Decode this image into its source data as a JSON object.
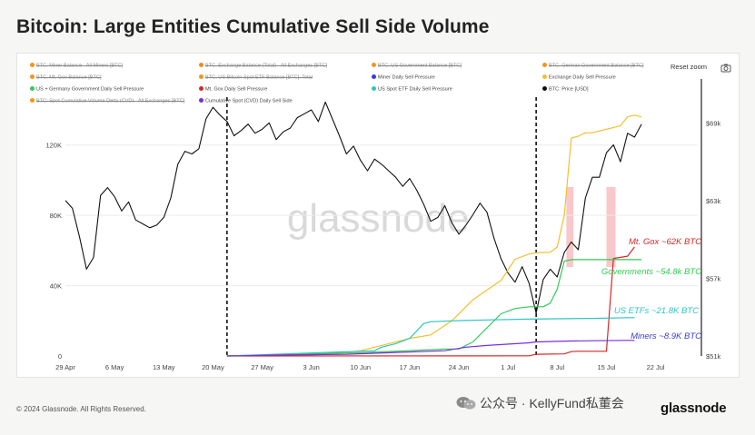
{
  "header": {
    "title": "Bitcoin: Large Entities Cumulative Sell Side Volume"
  },
  "toolbar": {
    "reset_label": "Reset zoom",
    "camera_icon": "camera-icon"
  },
  "legend": [
    {
      "label": "BTC: Miner Balance - All Miners [BTC]",
      "color": "#f7931a",
      "hidden": true
    },
    {
      "label": "BTC: Exchange Balance (Total) - All Exchanges [BTC]",
      "color": "#f08a24",
      "hidden": true
    },
    {
      "label": "BTC: US Government Balance [BTC]",
      "color": "#f7931a",
      "hidden": true
    },
    {
      "label": "BTC: German Government Balance [BTC]",
      "color": "#f7931a",
      "hidden": true
    },
    {
      "label": "BTC: Mt. Gox Balance [BTC]",
      "color": "#f7931a",
      "hidden": true
    },
    {
      "label": "BTC: US Bitcoin Spot ETF Balance [BTC]: Total",
      "color": "#f7931a",
      "hidden": true
    },
    {
      "label": "Miner Daily Sell Pressure",
      "color": "#3b3bdd",
      "hidden": false
    },
    {
      "label": "Exchange Daily Sell Pressure",
      "color": "#f2c02e",
      "hidden": false
    },
    {
      "label": "US + Germany Government Daily Sell Pressure",
      "color": "#2ecc52",
      "hidden": false
    },
    {
      "label": "Mt. Gox Daily Sell Pressure",
      "color": "#d62828",
      "hidden": false
    },
    {
      "label": "US Spot ETF Daily Sell Pressure",
      "color": "#2ec4c4",
      "hidden": false
    },
    {
      "label": "BTC: Price [USD]",
      "color": "#111111",
      "hidden": false
    },
    {
      "label": "BTC: Spot Cumulative Volume Delta (CVD) - All Exchanges [BTC]",
      "color": "#f7931a",
      "hidden": true
    },
    {
      "label": "Cumulative Spot (CVD) Daily Sell Side",
      "color": "#7a2ed6",
      "hidden": false
    }
  ],
  "annotations": [
    {
      "text": "Mt. Gox ~62K BTC",
      "color": "#d62828"
    },
    {
      "text": "Governments ~54.8k BTC",
      "color": "#2ecc52"
    },
    {
      "text": "US ETFs ~21.8K BTC",
      "color": "#2ec4c4"
    },
    {
      "text": "Miners ~8.9K BTC",
      "color": "#3b3bdd"
    }
  ],
  "watermark": "glassnode",
  "footer": {
    "copyright": "© 2024 Glassnode. All Rights Reserved.",
    "wechat": "公众号 · KellyFund私董会",
    "brand": "glassnode"
  },
  "chart_data": {
    "type": "line",
    "title": "Bitcoin: Large Entities Cumulative Sell Side Volume",
    "x_tick_labels": [
      "29 Apr",
      "6 May",
      "13 May",
      "20 May",
      "27 May",
      "3 Jun",
      "10 Jun",
      "17 Jun",
      "24 Jun",
      "1 Jul",
      "8 Jul",
      "15 Jul",
      "22 Jul"
    ],
    "x_range_days": [
      0,
      90
    ],
    "y_left": {
      "ticks": [
        0,
        40000,
        80000,
        120000
      ],
      "tick_labels": [
        "0",
        "40K",
        "80K",
        "120K"
      ],
      "range": [
        0,
        140000
      ]
    },
    "y_right": {
      "ticks": [
        51000,
        57000,
        63000,
        69000
      ],
      "tick_labels": [
        "$51k",
        "$57k",
        "$63k",
        "$69k"
      ],
      "range": [
        51000,
        70000
      ]
    },
    "vertical_markers_day": [
      23,
      67
    ],
    "shaded_regions_day": [
      [
        71.3,
        72.3
      ],
      [
        77,
        78.3
      ]
    ],
    "series": [
      {
        "name": "BTC: Price [USD]",
        "axis": "right",
        "color": "#111111",
        "x": [
          0,
          1,
          2,
          3,
          4,
          5,
          6,
          7,
          8,
          9,
          10,
          11,
          12,
          13,
          14,
          15,
          16,
          17,
          18,
          19,
          20,
          21,
          22,
          23,
          24,
          25,
          26,
          27,
          28,
          29,
          30,
          31,
          32,
          33,
          34,
          35,
          36,
          37,
          38,
          39,
          40,
          41,
          42,
          43,
          44,
          45,
          46,
          47,
          48,
          49,
          50,
          51,
          52,
          53,
          54,
          55,
          56,
          57,
          58,
          59,
          60,
          61,
          62,
          63,
          64,
          65,
          66,
          67,
          68,
          69,
          70,
          71,
          72,
          73,
          74,
          75,
          76,
          77,
          78,
          79,
          80,
          81,
          82
        ],
        "y": [
          63000,
          62400,
          60200,
          57700,
          58600,
          63400,
          64000,
          63300,
          62200,
          62900,
          61500,
          61200,
          60900,
          61100,
          61700,
          63200,
          65800,
          66800,
          66600,
          67000,
          69300,
          70200,
          69600,
          69100,
          68000,
          68400,
          68900,
          68200,
          68500,
          69000,
          67700,
          68300,
          68600,
          69400,
          69700,
          70000,
          69100,
          70600,
          69300,
          68000,
          66600,
          67200,
          66100,
          65300,
          66200,
          65800,
          65300,
          64800,
          64100,
          64700,
          63800,
          62700,
          61400,
          61700,
          62600,
          61300,
          60400,
          61100,
          61900,
          62800,
          62100,
          60100,
          58500,
          57400,
          56700,
          57900,
          56600,
          54300,
          56900,
          57700,
          57100,
          59000,
          59800,
          59200,
          63200,
          64800,
          64800,
          66700,
          67300,
          66000,
          68200,
          67900,
          68900
        ]
      },
      {
        "name": "Exchange Daily Sell Pressure",
        "axis": "left",
        "color": "#f2c02e",
        "x": [
          23,
          35,
          42,
          45,
          49,
          52,
          55,
          58,
          62,
          64,
          66,
          67,
          69,
          70,
          71,
          72,
          73,
          74,
          75,
          76,
          77,
          78,
          79,
          80,
          81,
          82
        ],
        "y": [
          0,
          500,
          3000,
          6000,
          10000,
          12000,
          20000,
          32000,
          43000,
          55000,
          58000,
          58700,
          59000,
          62000,
          80000,
          124000,
          125000,
          127000,
          127000,
          128000,
          129000,
          130000,
          131000,
          136000,
          137000,
          136000
        ]
      },
      {
        "name": "Mt. Gox Daily Sell Pressure",
        "axis": "left",
        "color": "#d62828",
        "x": [
          23,
          66,
          67,
          71,
          72,
          73,
          76,
          77,
          78,
          80,
          81
        ],
        "y": [
          0,
          100,
          1000,
          1200,
          2500,
          2700,
          2700,
          2700,
          55500,
          56800,
          62000
        ]
      },
      {
        "name": "US + Germany Government Daily Sell Pressure",
        "axis": "left",
        "color": "#2ecc52",
        "x": [
          23,
          43,
          54,
          56,
          57,
          58,
          60,
          62,
          64,
          66,
          67,
          68,
          69,
          70,
          71,
          72,
          73,
          74,
          75,
          76,
          77,
          78,
          79,
          80,
          81,
          82
        ],
        "y": [
          0,
          2000,
          4000,
          4000,
          6000,
          8000,
          16000,
          24000,
          27000,
          28000,
          28000,
          28000,
          30000,
          38000,
          54000,
          54800,
          54800,
          54800,
          54800,
          54800,
          54800,
          54800,
          54800,
          54800,
          54800,
          54800
        ]
      },
      {
        "name": "US Spot ETF Daily Sell Pressure",
        "axis": "left",
        "color": "#2ec4c4",
        "x": [
          23,
          44,
          45,
          47,
          49,
          51,
          52,
          55,
          60,
          66,
          70,
          75,
          80,
          81
        ],
        "y": [
          0,
          3000,
          5000,
          7000,
          10000,
          18500,
          19500,
          20000,
          20500,
          21000,
          21200,
          21400,
          21800,
          21800
        ]
      },
      {
        "name": "Cumulative Spot (CVD) Daily Sell Side",
        "axis": "left",
        "color": "#7a2ed6",
        "x": [
          23,
          30,
          40,
          47,
          54,
          57,
          60,
          66,
          67,
          70,
          72,
          75,
          80,
          81
        ],
        "y": [
          0,
          500,
          1000,
          2000,
          3000,
          5000,
          6000,
          7500,
          8000,
          8300,
          8500,
          8700,
          8900,
          8900
        ]
      }
    ]
  }
}
